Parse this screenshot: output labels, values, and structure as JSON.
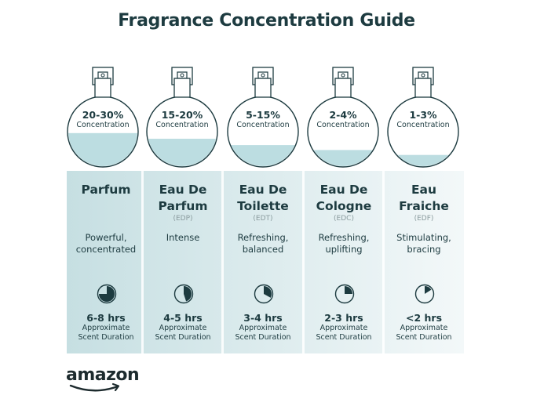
{
  "title": "Fragrance Concentration Guide",
  "colors": {
    "text": "#1d3b40",
    "liquid": "#bcdde1",
    "card_dark": "#c6dfe2",
    "card_light": "#f3f8f9"
  },
  "types": [
    {
      "percent": "20-30%",
      "concentration_label": "Concentration",
      "fill_level": 0.48,
      "name_line1": "Parfum",
      "name_line2": "",
      "abbr": "",
      "desc_line1": "Powerful,",
      "desc_line2": "concentrated",
      "duration": "6-8 hrs",
      "duration_fraction": 0.75,
      "approx_line1": "Approximate",
      "approx_line2": "Scent Duration"
    },
    {
      "percent": "15-20%",
      "concentration_label": "Concentration",
      "fill_level": 0.4,
      "name_line1": "Eau De",
      "name_line2": "Parfum",
      "abbr": "(EDP)",
      "desc_line1": "Intense",
      "desc_line2": "",
      "duration": "4-5 hrs",
      "duration_fraction": 0.45,
      "approx_line1": "Approximate",
      "approx_line2": "Scent Duration"
    },
    {
      "percent": "5-15%",
      "concentration_label": "Concentration",
      "fill_level": 0.31,
      "name_line1": "Eau De",
      "name_line2": "Toilette",
      "abbr": "(EDT)",
      "desc_line1": "Refreshing,",
      "desc_line2": "balanced",
      "duration": "3-4 hrs",
      "duration_fraction": 0.33,
      "approx_line1": "Approximate",
      "approx_line2": "Scent Duration"
    },
    {
      "percent": "2-4%",
      "concentration_label": "Concentration",
      "fill_level": 0.24,
      "name_line1": "Eau De",
      "name_line2": "Cologne",
      "abbr": "(EDC)",
      "desc_line1": "Refreshing,",
      "desc_line2": "uplifting",
      "duration": "2-3 hrs",
      "duration_fraction": 0.25,
      "approx_line1": "Approximate",
      "approx_line2": "Scent Duration"
    },
    {
      "percent": "1-3%",
      "concentration_label": "Concentration",
      "fill_level": 0.17,
      "name_line1": "Eau",
      "name_line2": "Fraiche",
      "abbr": "(EDF)",
      "desc_line1": "Stimulating,",
      "desc_line2": "bracing",
      "duration": "<2 hrs",
      "duration_fraction": 0.16,
      "approx_line1": "Approximate",
      "approx_line2": "Scent Duration"
    }
  ],
  "logo": {
    "text": "amazon",
    "icon": "amazon-smile-arrow"
  }
}
